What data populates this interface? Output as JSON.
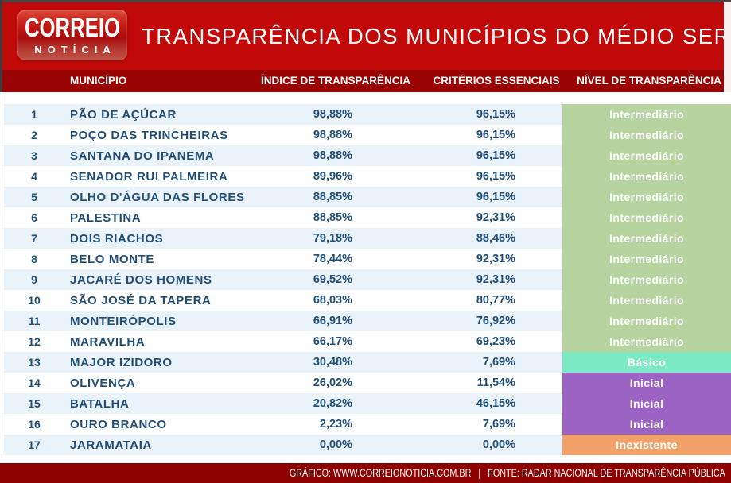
{
  "masthead": {
    "logo_line1": "CORREIO",
    "logo_line2": "NOTÍCIA",
    "title": "TRANSPARÊNCIA DOS MUNICÍPIOS DO MÉDIO SERTÃO"
  },
  "table": {
    "columns": [
      "MUNICÍPIO",
      "ÍNDICE DE TRANSPARÊNCIA",
      "CRITÉRIOS ESSENCIAIS",
      "NÍVEL DE TRANSPARÊNCIA"
    ],
    "rows": [
      {
        "rank": "1",
        "name": "PÃO DE AÇÚCAR",
        "index": "98,88%",
        "criteria": "96,15%",
        "level": "Intermediário"
      },
      {
        "rank": "2",
        "name": "POÇO DAS TRINCHEIRAS",
        "index": "98,88%",
        "criteria": "96,15%",
        "level": "Intermediário"
      },
      {
        "rank": "3",
        "name": "SANTANA DO IPANEMA",
        "index": "98,88%",
        "criteria": "96,15%",
        "level": "Intermediário"
      },
      {
        "rank": "4",
        "name": "SENADOR RUI PALMEIRA",
        "index": "89,96%",
        "criteria": "96,15%",
        "level": "Intermediário"
      },
      {
        "rank": "5",
        "name": "OLHO D'ÁGUA DAS FLORES",
        "index": "88,85%",
        "criteria": "96,15%",
        "level": "Intermediário"
      },
      {
        "rank": "6",
        "name": "PALESTINA",
        "index": "88,85%",
        "criteria": "92,31%",
        "level": "Intermediário"
      },
      {
        "rank": "7",
        "name": "DOIS RIACHOS",
        "index": "79,18%",
        "criteria": "88,46%",
        "level": "Intermediário"
      },
      {
        "rank": "8",
        "name": "BELO MONTE",
        "index": "78,44%",
        "criteria": "92,31%",
        "level": "Intermediário"
      },
      {
        "rank": "9",
        "name": "JACARÉ DOS HOMENS",
        "index": "69,52%",
        "criteria": "92,31%",
        "level": "Intermediário"
      },
      {
        "rank": "10",
        "name": "SÃO JOSÉ DA TAPERA",
        "index": "68,03%",
        "criteria": "80,77%",
        "level": "Intermediário"
      },
      {
        "rank": "11",
        "name": "MONTEIRÓPOLIS",
        "index": "66,91%",
        "criteria": "76,92%",
        "level": "Intermediário"
      },
      {
        "rank": "12",
        "name": "MARAVILHA",
        "index": "66,17%",
        "criteria": "69,23%",
        "level": "Intermediário"
      },
      {
        "rank": "13",
        "name": "MAJOR IZIDORO",
        "index": "30,48%",
        "criteria": "7,69%",
        "level": "Básico"
      },
      {
        "rank": "14",
        "name": "OLIVENÇA",
        "index": "26,02%",
        "criteria": "11,54%",
        "level": "Inicial"
      },
      {
        "rank": "15",
        "name": "BATALHA",
        "index": "20,82%",
        "criteria": "46,15%",
        "level": "Inicial"
      },
      {
        "rank": "16",
        "name": "OURO BRANCO",
        "index": "2,23%",
        "criteria": "7,69%",
        "level": "Inicial"
      },
      {
        "rank": "17",
        "name": "JARAMATAIA",
        "index": "0,00%",
        "criteria": "0,00%",
        "level": "Inexistente"
      }
    ]
  },
  "level_colors": {
    "Intermediário": "#B6D3A0",
    "Básico": "#7CEAC5",
    "Inicial": "#9C63C4",
    "Inexistente": "#F1A169"
  },
  "colors": {
    "masthead_red": "#C10909",
    "column_header_red": "#9A0303",
    "footer_red": "#8C0000",
    "row_stripe": "#EAF2FA",
    "row_plain": "#FFFFFF",
    "data_text_blue": "#1F4E79"
  },
  "footer": {
    "credits": "GRÁFICO: WWW.CORREIONOTICIA.COM.BR   |   FONTE: RADAR NACIONAL DE TRANSPARÊNCIA PÚBLICA"
  },
  "chart_data": {
    "type": "table",
    "title": "TRANSPARÊNCIA DOS MUNICÍPIOS DO MÉDIO SERTÃO",
    "columns": [
      "#",
      "MUNICÍPIO",
      "ÍNDICE DE TRANSPARÊNCIA",
      "CRITÉRIOS ESSENCIAIS",
      "NÍVEL DE TRANSPARÊNCIA"
    ],
    "rows": [
      [
        1,
        "PÃO DE AÇÚCAR",
        "98,88%",
        "96,15%",
        "Intermediário"
      ],
      [
        2,
        "POÇO DAS TRINCHEIRAS",
        "98,88%",
        "96,15%",
        "Intermediário"
      ],
      [
        3,
        "SANTANA DO IPANEMA",
        "98,88%",
        "96,15%",
        "Intermediário"
      ],
      [
        4,
        "SENADOR RUI PALMEIRA",
        "89,96%",
        "96,15%",
        "Intermediário"
      ],
      [
        5,
        "OLHO D'ÁGUA DAS FLORES",
        "88,85%",
        "96,15%",
        "Intermediário"
      ],
      [
        6,
        "PALESTINA",
        "88,85%",
        "92,31%",
        "Intermediário"
      ],
      [
        7,
        "DOIS RIACHOS",
        "79,18%",
        "88,46%",
        "Intermediário"
      ],
      [
        8,
        "BELO MONTE",
        "78,44%",
        "92,31%",
        "Intermediário"
      ],
      [
        9,
        "JACARÉ DOS HOMENS",
        "69,52%",
        "92,31%",
        "Intermediário"
      ],
      [
        10,
        "SÃO JOSÉ DA TAPERA",
        "68,03%",
        "80,77%",
        "Intermediário"
      ],
      [
        11,
        "MONTEIRÓPOLIS",
        "66,91%",
        "76,92%",
        "Intermediário"
      ],
      [
        12,
        "MARAVILHA",
        "66,17%",
        "69,23%",
        "Intermediário"
      ],
      [
        13,
        "MAJOR IZIDORO",
        "30,48%",
        "7,69%",
        "Básico"
      ],
      [
        14,
        "OLIVENÇA",
        "26,02%",
        "11,54%",
        "Inicial"
      ],
      [
        15,
        "BATALHA",
        "20,82%",
        "46,15%",
        "Inicial"
      ],
      [
        16,
        "OURO BRANCO",
        "2,23%",
        "7,69%",
        "Inicial"
      ],
      [
        17,
        "JARAMATAIA",
        "0,00%",
        "0,00%",
        "Inexistente"
      ]
    ]
  }
}
